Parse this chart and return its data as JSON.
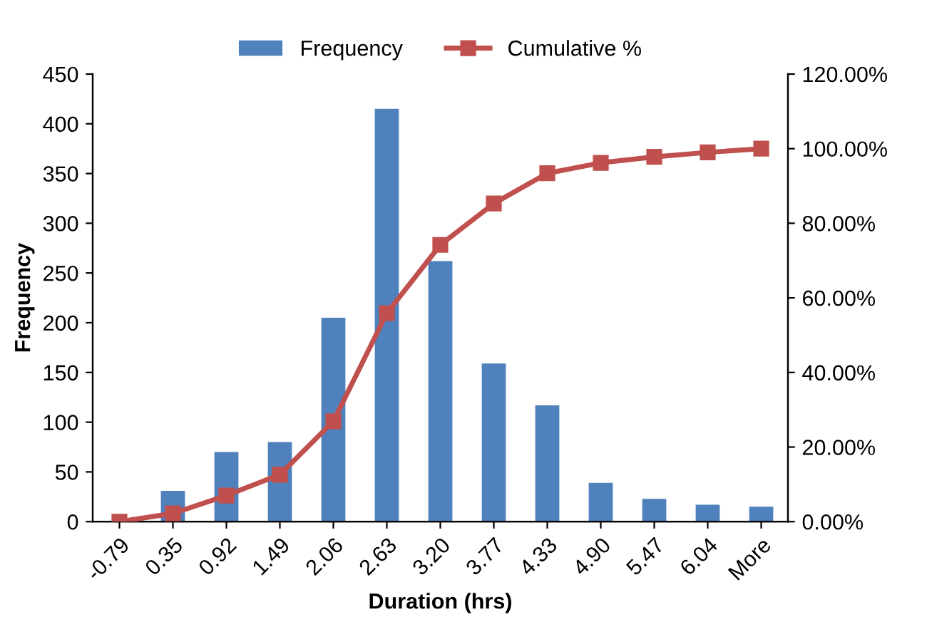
{
  "chart_data": {
    "type": "bar",
    "xlabel": "Duration (hrs)",
    "ylabel": "Frequency",
    "categories": [
      "-0.79",
      "0.35",
      "0.92",
      "1.49",
      "2.06",
      "2.63",
      "3.20",
      "3.77",
      "4.33",
      "4.90",
      "5.47",
      "6.04",
      "More"
    ],
    "series": [
      {
        "name": "Frequency",
        "color": "#4f81bd",
        "values": [
          0,
          31,
          70,
          80,
          205,
          415,
          262,
          159,
          117,
          39,
          23,
          17,
          15
        ]
      },
      {
        "name": "Cumulative %",
        "type": "line",
        "axis": "y2",
        "color": "#c0504d",
        "marker": "square",
        "values": [
          0,
          2.2,
          7.0,
          12.6,
          26.9,
          55.9,
          74.2,
          85.3,
          93.4,
          96.2,
          97.8,
          99.0,
          100
        ]
      }
    ],
    "ylim": [
      0,
      450
    ],
    "yticks": [
      0,
      50,
      100,
      150,
      200,
      250,
      300,
      350,
      400,
      450
    ],
    "y2lim": [
      0,
      120
    ],
    "y2ticks": [
      {
        "value": 0,
        "label": "0.00%"
      },
      {
        "value": 20,
        "label": "20.00%"
      },
      {
        "value": 40,
        "label": "40.00%"
      },
      {
        "value": 60,
        "label": "60.00%"
      },
      {
        "value": 80,
        "label": "80.00%"
      },
      {
        "value": 100,
        "label": "100.00%"
      },
      {
        "value": 120,
        "label": "120.00%"
      }
    ],
    "legend": "top",
    "grid": false
  }
}
